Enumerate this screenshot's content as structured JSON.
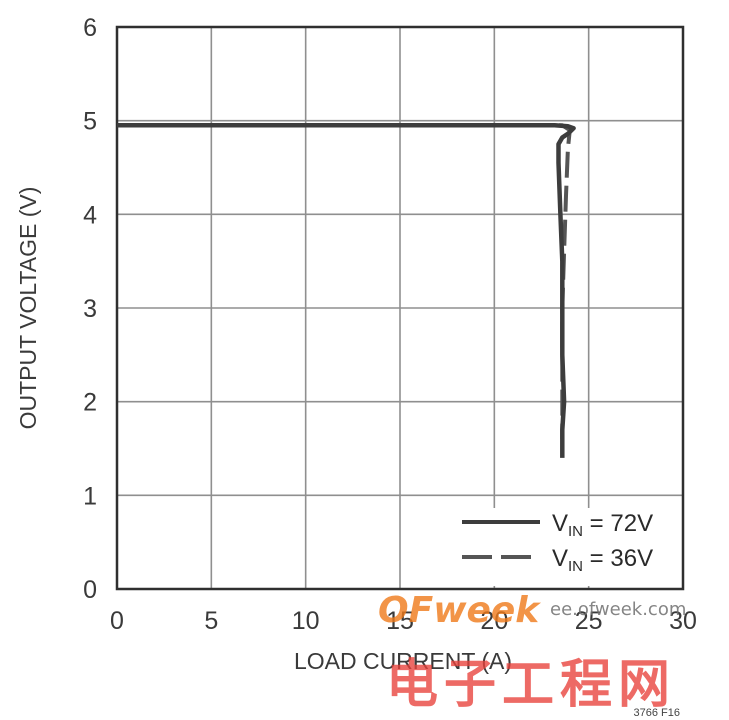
{
  "chart_data": {
    "type": "line",
    "title": "",
    "xlabel": "LOAD CURRENT (A)",
    "ylabel": "OUTPUT VOLTAGE (V)",
    "xlim": [
      0,
      30
    ],
    "ylim": [
      0,
      6
    ],
    "x_ticks": [
      "0",
      "5",
      "10",
      "15",
      "20",
      "25",
      "30"
    ],
    "y_ticks": [
      "0",
      "1",
      "2",
      "3",
      "4",
      "5",
      "6"
    ],
    "grid": true,
    "legend_position": "bottom-right",
    "series": [
      {
        "name_prefix": "V",
        "name_sub": "IN",
        "name_suffix": " = 72V",
        "style": "solid",
        "color": "#3d3d3d",
        "points": [
          [
            0,
            4.95
          ],
          [
            23.2,
            4.95
          ],
          [
            23.9,
            4.94
          ],
          [
            24.2,
            4.92
          ],
          [
            23.9,
            4.86
          ],
          [
            23.6,
            4.82
          ],
          [
            23.4,
            4.75
          ],
          [
            23.4,
            4.55
          ],
          [
            23.5,
            4.0
          ],
          [
            23.6,
            3.5
          ],
          [
            23.6,
            3.0
          ],
          [
            23.6,
            2.5
          ],
          [
            23.7,
            2.0
          ],
          [
            23.6,
            1.7
          ],
          [
            23.6,
            1.4
          ]
        ]
      },
      {
        "name_prefix": "V",
        "name_sub": "IN",
        "name_suffix": " = 36V",
        "style": "dashed",
        "color": "#555555",
        "points": [
          [
            0,
            4.95
          ],
          [
            23.6,
            4.95
          ],
          [
            24.0,
            4.9
          ],
          [
            23.9,
            4.7
          ],
          [
            23.8,
            4.2
          ],
          [
            23.7,
            3.6
          ],
          [
            23.6,
            3.0
          ],
          [
            23.6,
            2.4
          ],
          [
            23.6,
            1.9
          ],
          [
            23.6,
            1.6
          ]
        ]
      }
    ]
  },
  "figure_id": "3766 F16",
  "watermark": {
    "logo": "OFweek",
    "url": "ee.ofweek.com",
    "chinese": "电子工程网"
  }
}
